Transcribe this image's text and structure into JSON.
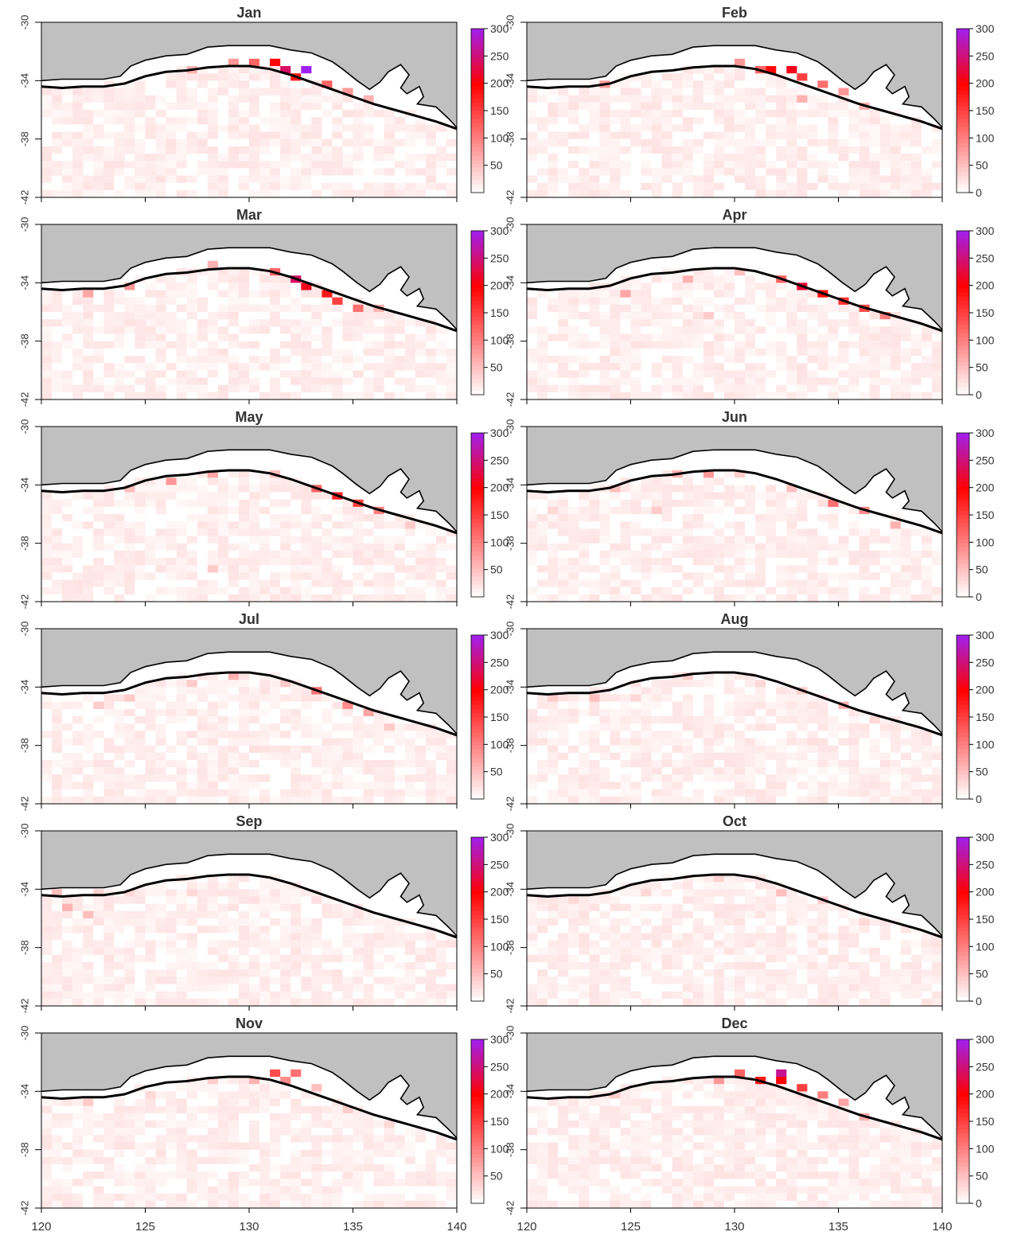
{
  "figure": {
    "panels": [
      {
        "month": "Jan"
      },
      {
        "month": "Feb"
      },
      {
        "month": "Mar"
      },
      {
        "month": "Apr"
      },
      {
        "month": "May"
      },
      {
        "month": "Jun"
      },
      {
        "month": "Jul"
      },
      {
        "month": "Aug"
      },
      {
        "month": "Sep"
      },
      {
        "month": "Oct"
      },
      {
        "month": "Nov"
      },
      {
        "month": "Dec"
      }
    ],
    "x_ticks": [
      "120",
      "125",
      "130",
      "135",
      "140"
    ],
    "y_ticks": [
      "-30",
      "-34",
      "-38",
      "-42"
    ],
    "colorbar_ticks_left": [
      "50",
      "100",
      "150",
      "200",
      "250",
      "300"
    ],
    "colorbar_ticks_right": [
      "0",
      "50",
      "100",
      "150",
      "200",
      "250",
      "300"
    ],
    "colors": {
      "land": "#c0c0c0",
      "low": "#ffffff",
      "mid": "#ff0000",
      "high": "#a020f0",
      "coast": "#000000"
    }
  },
  "chart_data": {
    "type": "heatmap",
    "x_range": [
      120,
      140
    ],
    "y_range": [
      -42,
      -30
    ],
    "color_range": [
      0,
      300
    ],
    "hotspots": {
      "Jan": [
        [
          132.5,
          -33.2,
          300
        ],
        [
          131.5,
          -33.0,
          240
        ],
        [
          131.0,
          -32.8,
          200
        ],
        [
          132.0,
          -33.6,
          180
        ],
        [
          130.0,
          -32.8,
          120
        ],
        [
          133.5,
          -34.2,
          120
        ],
        [
          129.0,
          -32.9,
          80
        ],
        [
          134.5,
          -34.8,
          80
        ],
        [
          127.0,
          -33.3,
          60
        ],
        [
          135.5,
          -35.3,
          60
        ]
      ],
      "Feb": [
        [
          132.5,
          -33.4,
          210
        ],
        [
          131.8,
          -33.2,
          190
        ],
        [
          133.0,
          -33.8,
          150
        ],
        [
          131.0,
          -33.0,
          120
        ],
        [
          134.0,
          -34.4,
          110
        ],
        [
          130.0,
          -32.8,
          80
        ],
        [
          135.0,
          -34.9,
          80
        ],
        [
          123.5,
          -34.0,
          80
        ],
        [
          133.0,
          -35.2,
          60
        ],
        [
          136.0,
          -35.5,
          60
        ]
      ],
      "Mar": [
        [
          132.0,
          -33.6,
          240
        ],
        [
          132.6,
          -34.0,
          210
        ],
        [
          133.5,
          -34.5,
          180
        ],
        [
          134.3,
          -35.0,
          150
        ],
        [
          131.2,
          -33.3,
          120
        ],
        [
          135.2,
          -35.6,
          110
        ],
        [
          124.0,
          -34.2,
          80
        ],
        [
          122.0,
          -34.6,
          70
        ],
        [
          136.3,
          -35.9,
          60
        ],
        [
          128.0,
          -32.8,
          60
        ]
      ],
      "Apr": [
        [
          133.0,
          -34.3,
          220
        ],
        [
          134.0,
          -34.8,
          190
        ],
        [
          135.0,
          -35.3,
          160
        ],
        [
          136.0,
          -35.8,
          140
        ],
        [
          132.2,
          -33.9,
          120
        ],
        [
          137.0,
          -36.2,
          100
        ],
        [
          124.5,
          -34.5,
          70
        ],
        [
          127.5,
          -33.5,
          60
        ],
        [
          130.0,
          -33.2,
          50
        ],
        [
          128.5,
          -36.0,
          40
        ]
      ],
      "May": [
        [
          134.0,
          -34.8,
          170
        ],
        [
          135.0,
          -35.3,
          150
        ],
        [
          133.0,
          -34.3,
          120
        ],
        [
          136.0,
          -35.8,
          100
        ],
        [
          126.0,
          -33.5,
          80
        ],
        [
          128.0,
          -33.0,
          70
        ],
        [
          131.0,
          -33.4,
          50
        ],
        [
          124.0,
          -34.3,
          50
        ],
        [
          128.0,
          -39.5,
          40
        ],
        [
          137.5,
          -36.5,
          40
        ]
      ],
      "Jun": [
        [
          134.5,
          -35.0,
          110
        ],
        [
          136.0,
          -35.8,
          90
        ],
        [
          128.5,
          -33.2,
          80
        ],
        [
          127.0,
          -33.3,
          60
        ],
        [
          124.0,
          -34.2,
          50
        ],
        [
          137.5,
          -36.6,
          60
        ],
        [
          132.5,
          -34.0,
          50
        ],
        [
          126.0,
          -35.8,
          40
        ],
        [
          130.0,
          -33.1,
          40
        ],
        [
          121.0,
          -35.5,
          30
        ]
      ],
      "Jul": [
        [
          133.0,
          -34.3,
          110
        ],
        [
          134.5,
          -35.2,
          90
        ],
        [
          135.5,
          -35.6,
          70
        ],
        [
          129.0,
          -33.0,
          60
        ],
        [
          122.5,
          -35.0,
          40
        ],
        [
          124.0,
          -34.8,
          40
        ],
        [
          127.0,
          -33.5,
          40
        ],
        [
          131.5,
          -33.5,
          40
        ],
        [
          136.5,
          -36.5,
          40
        ],
        [
          130.0,
          -38.0,
          25
        ]
      ],
      "Aug": [
        [
          135.0,
          -35.3,
          60
        ],
        [
          123.0,
          -34.6,
          50
        ],
        [
          121.0,
          -34.8,
          40
        ],
        [
          127.5,
          -33.4,
          40
        ],
        [
          133.0,
          -34.3,
          40
        ],
        [
          131.0,
          -33.6,
          30
        ],
        [
          136.5,
          -36.3,
          30
        ],
        [
          125.0,
          -34.5,
          30
        ],
        [
          133.5,
          -37.5,
          25
        ],
        [
          129.0,
          -36.5,
          20
        ]
      ],
      "Sep": [
        [
          121.0,
          -35.2,
          60
        ],
        [
          122.0,
          -35.6,
          50
        ],
        [
          120.5,
          -34.4,
          50
        ],
        [
          124.0,
          -34.3,
          30
        ],
        [
          127.0,
          -34.3,
          30
        ],
        [
          130.0,
          -34.5,
          25
        ],
        [
          133.0,
          -34.5,
          25
        ],
        [
          122.5,
          -34.2,
          35
        ],
        [
          126.0,
          -36.5,
          20
        ],
        [
          135.0,
          -35.8,
          20
        ]
      ],
      "Oct": [
        [
          132.0,
          -34.0,
          50
        ],
        [
          134.0,
          -34.9,
          40
        ],
        [
          129.0,
          -33.2,
          35
        ],
        [
          125.5,
          -34.2,
          30
        ],
        [
          122.0,
          -34.5,
          30
        ],
        [
          136.0,
          -36.0,
          30
        ],
        [
          130.5,
          -37.5,
          20
        ],
        [
          127.0,
          -35.5,
          20
        ],
        [
          133.5,
          -36.5,
          20
        ],
        [
          123.5,
          -37.0,
          15
        ]
      ],
      "Nov": [
        [
          131.0,
          -32.6,
          140
        ],
        [
          132.0,
          -32.9,
          110
        ],
        [
          131.5,
          -33.4,
          90
        ],
        [
          130.0,
          -33.0,
          60
        ],
        [
          133.0,
          -33.5,
          50
        ],
        [
          122.0,
          -34.6,
          40
        ],
        [
          128.0,
          -33.2,
          40
        ],
        [
          134.5,
          -35.0,
          40
        ],
        [
          125.0,
          -34.4,
          30
        ],
        [
          136.5,
          -36.0,
          30
        ]
      ],
      "Dec": [
        [
          132.0,
          -32.8,
          260
        ],
        [
          132.2,
          -33.3,
          200
        ],
        [
          131.0,
          -33.0,
          180
        ],
        [
          133.0,
          -33.6,
          150
        ],
        [
          130.0,
          -32.9,
          120
        ],
        [
          134.0,
          -34.2,
          100
        ],
        [
          129.0,
          -33.0,
          80
        ],
        [
          135.0,
          -34.9,
          70
        ],
        [
          136.0,
          -35.5,
          60
        ],
        [
          124.0,
          -34.3,
          40
        ]
      ]
    }
  }
}
